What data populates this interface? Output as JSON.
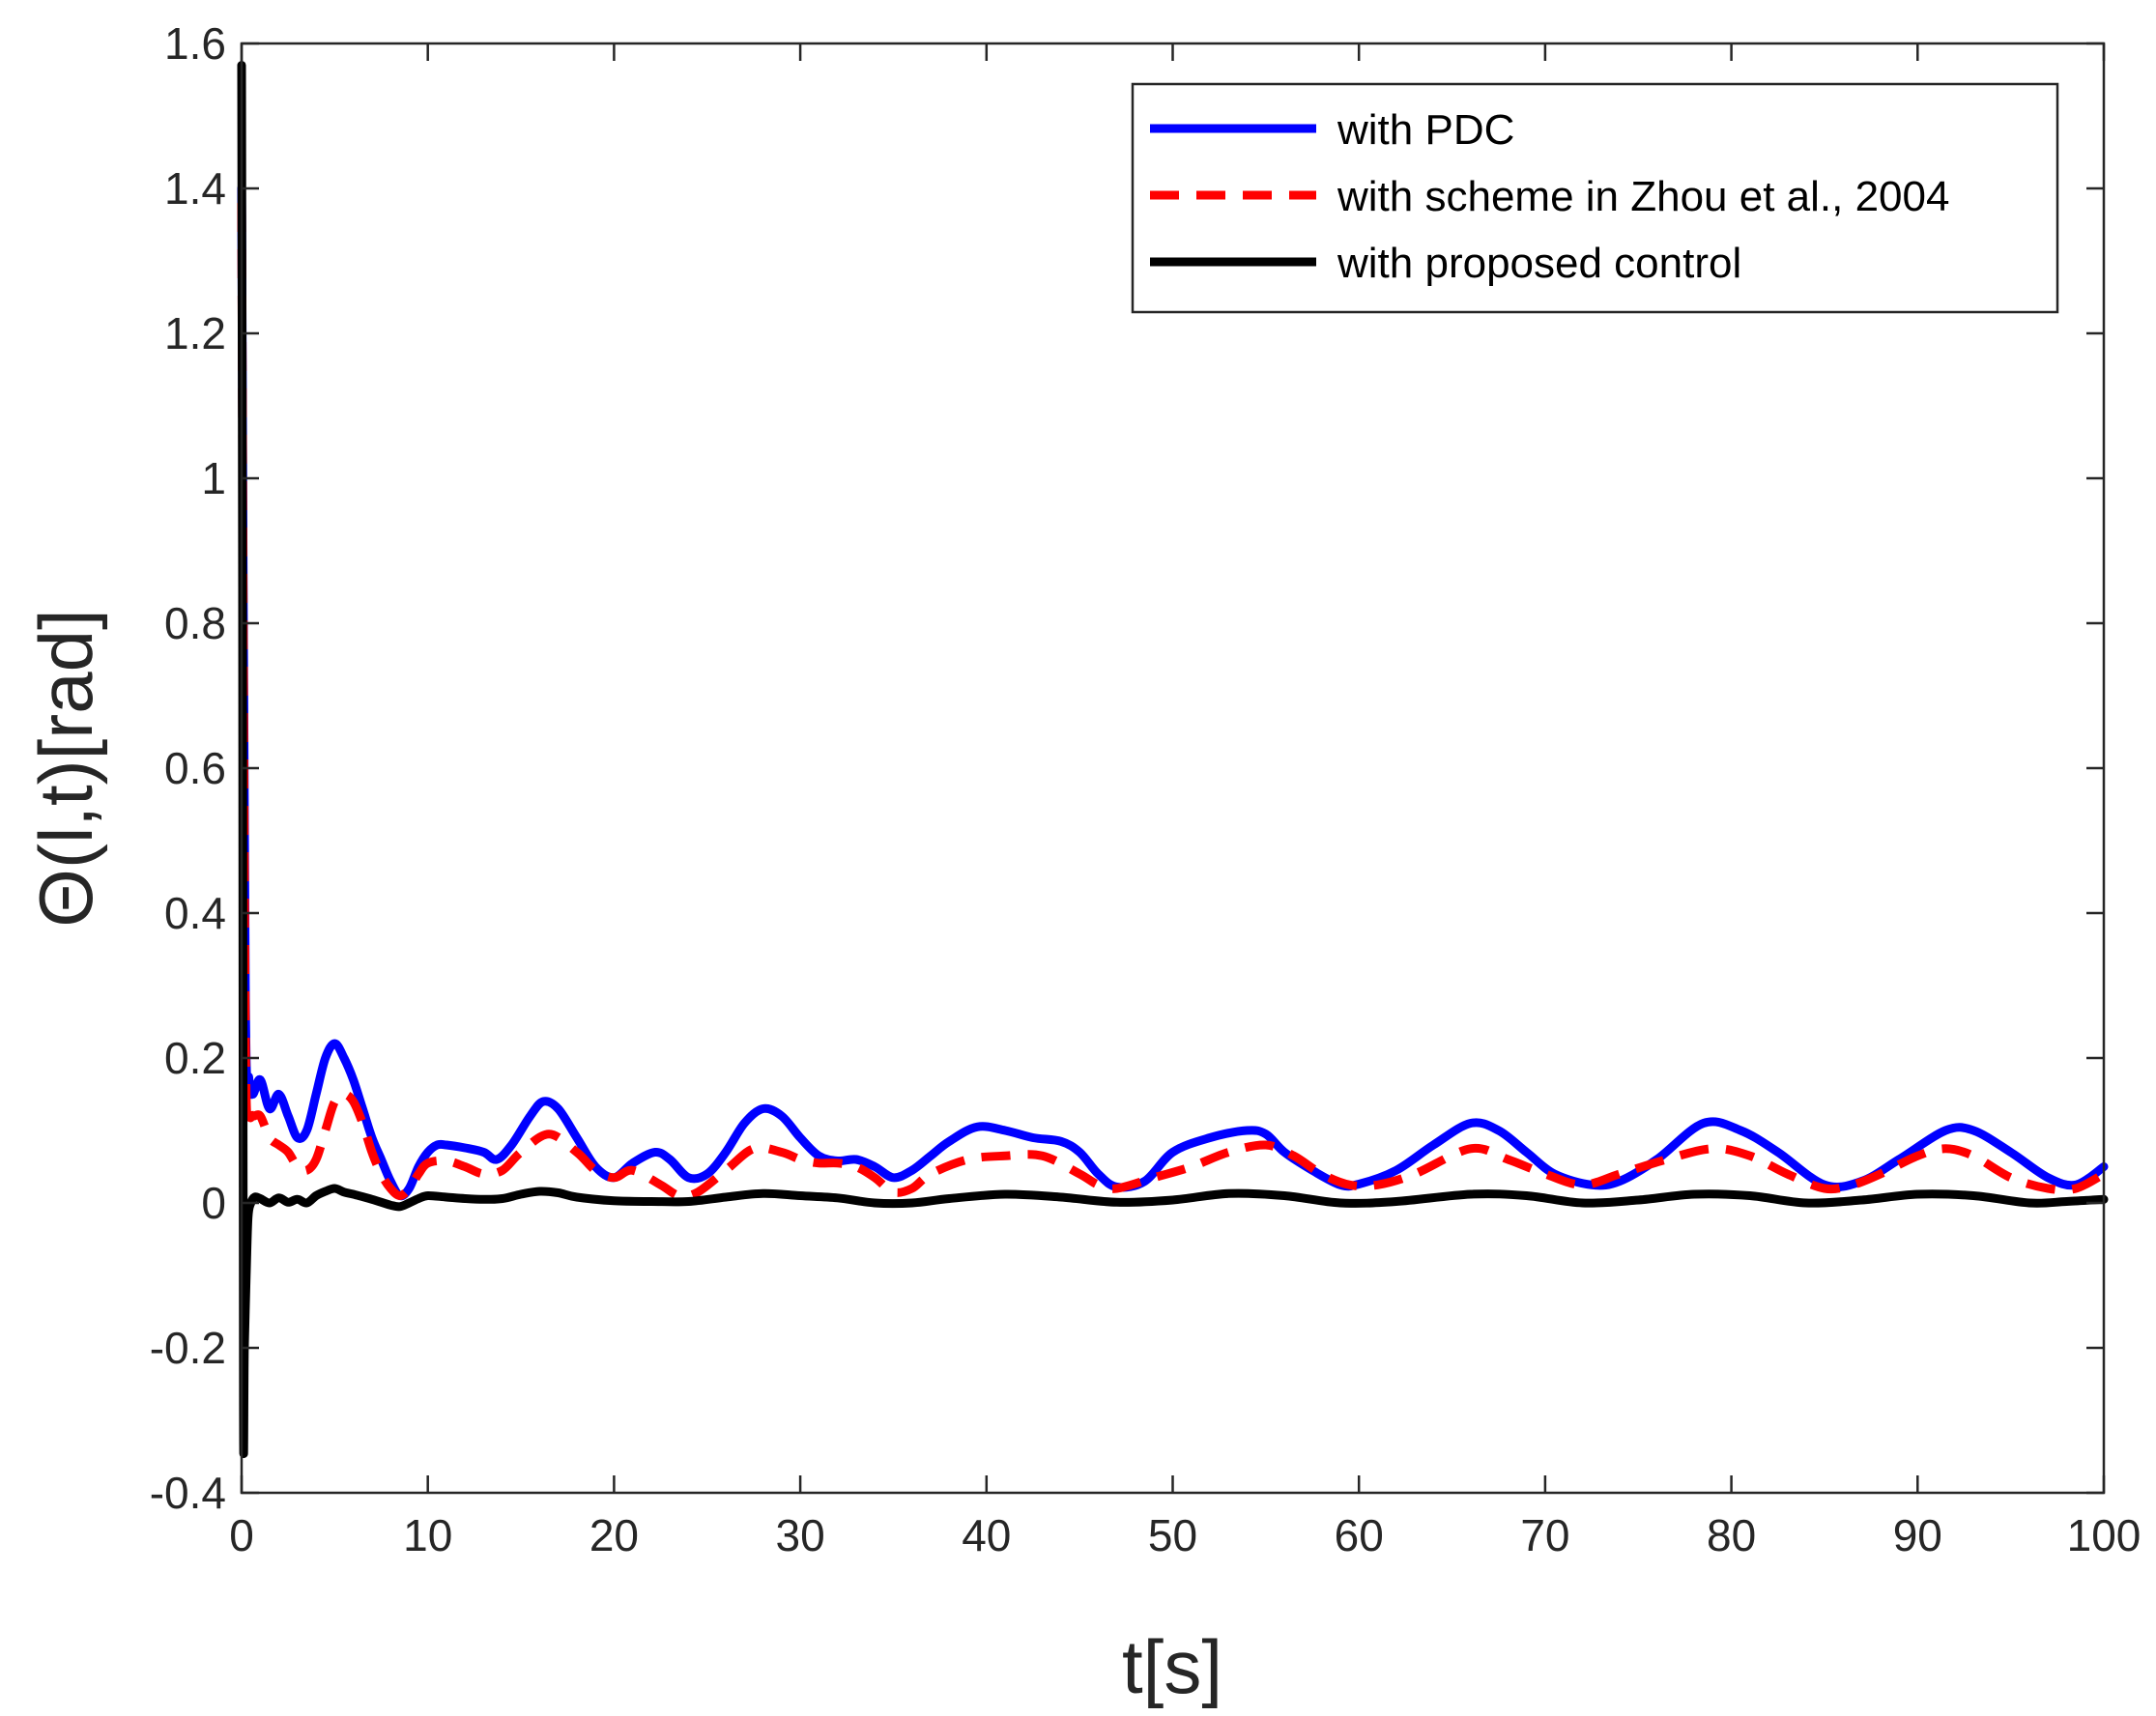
{
  "chart_data": {
    "type": "line",
    "title": "",
    "xlabel": "t[s]",
    "ylabel": "Θ(l,t)[rad]",
    "xlim": [
      0,
      100
    ],
    "ylim": [
      -0.4,
      1.6
    ],
    "xticks": [
      0,
      10,
      20,
      30,
      40,
      50,
      60,
      70,
      80,
      90,
      100
    ],
    "xtick_labels": [
      "0",
      "10",
      "20",
      "30",
      "40",
      "50",
      "60",
      "70",
      "80",
      "90",
      "100"
    ],
    "yticks": [
      -0.4,
      -0.2,
      0,
      0.2,
      0.4,
      0.6,
      0.8,
      1,
      1.2,
      1.4,
      1.6
    ],
    "ytick_labels": [
      "-0.4",
      "-0.2",
      "0",
      "0.2",
      "0.4",
      "0.6",
      "0.8",
      "1",
      "1.2",
      "1.4",
      "1.6"
    ],
    "grid": false,
    "legend_position": "top-right",
    "series": [
      {
        "name": "with PDC",
        "color": "#0000ff",
        "style": "solid",
        "x": [
          0,
          0.2,
          0.4,
          0.6,
          1.0,
          1.5,
          2.0,
          2.5,
          3.0,
          3.5,
          4.0,
          4.5,
          5.0,
          5.5,
          6.0,
          6.5,
          7.0,
          7.5,
          8.0,
          8.5,
          9.0,
          9.5,
          10.0,
          10.5,
          11.0,
          12.0,
          13.0,
          13.7,
          14.5,
          15.5,
          16.2,
          17.0,
          18.0,
          19.0,
          20.0,
          21.0,
          22.2,
          23.0,
          24.0,
          25.0,
          26.0,
          27.0,
          28.0,
          29.0,
          30.0,
          31.0,
          32.0,
          33.0,
          34.0,
          35.0,
          36.0,
          37.0,
          38.0,
          39.5,
          41.0,
          42.5,
          44.0,
          45.0,
          46.0,
          47.0,
          48.5,
          50.0,
          52.0,
          54.0,
          55.0,
          56.0,
          57.5,
          59.0,
          60.0,
          62.0,
          64.0,
          66.0,
          67.5,
          69.0,
          70.5,
          72.5,
          74.0,
          76.0,
          78.5,
          80.5,
          82.5,
          85.0,
          87.0,
          89.0,
          91.5,
          93.0,
          95.0,
          97.0,
          98.5,
          100.0
        ],
        "values": [
          1.4,
          0.3,
          0.17,
          0.15,
          0.17,
          0.13,
          0.15,
          0.12,
          0.09,
          0.1,
          0.15,
          0.2,
          0.22,
          0.2,
          0.17,
          0.13,
          0.09,
          0.06,
          0.03,
          0.01,
          0.02,
          0.05,
          0.07,
          0.08,
          0.08,
          0.076,
          0.07,
          0.06,
          0.08,
          0.12,
          0.14,
          0.13,
          0.09,
          0.05,
          0.035,
          0.055,
          0.07,
          0.06,
          0.035,
          0.04,
          0.07,
          0.11,
          0.13,
          0.12,
          0.09,
          0.065,
          0.058,
          0.06,
          0.05,
          0.035,
          0.045,
          0.065,
          0.085,
          0.105,
          0.1,
          0.09,
          0.085,
          0.07,
          0.04,
          0.022,
          0.03,
          0.07,
          0.09,
          0.1,
          0.095,
          0.07,
          0.045,
          0.025,
          0.026,
          0.045,
          0.08,
          0.11,
          0.1,
          0.07,
          0.04,
          0.025,
          0.03,
          0.06,
          0.11,
          0.1,
          0.07,
          0.025,
          0.03,
          0.06,
          0.1,
          0.1,
          0.07,
          0.035,
          0.025,
          0.05
        ]
      },
      {
        "name": "with scheme in Zhou et al., 2004",
        "color": "#ff0000",
        "style": "dashed",
        "x": [
          0,
          0.2,
          0.4,
          0.6,
          1.0,
          1.5,
          2.0,
          2.5,
          3.0,
          3.5,
          4.0,
          4.5,
          5.0,
          5.5,
          6.0,
          6.5,
          7.0,
          7.5,
          8.0,
          8.5,
          9.0,
          9.5,
          10.0,
          11.0,
          12.0,
          13.0,
          14.0,
          15.0,
          16.5,
          18.0,
          19.0,
          20.0,
          21.0,
          22.5,
          23.5,
          24.5,
          26.0,
          27.5,
          29.0,
          30.0,
          31.0,
          32.0,
          33.0,
          34.0,
          35.0,
          36.0,
          37.0,
          39.0,
          41.0,
          43.0,
          45.0,
          46.0,
          47.0,
          49.0,
          51.0,
          53.0,
          55.0,
          56.5,
          58.0,
          59.5,
          61.0,
          63.0,
          66.0,
          68.0,
          70.0,
          72.0,
          74.0,
          76.5,
          79.0,
          81.0,
          83.0,
          85.0,
          86.5,
          88.0,
          90.0,
          91.5,
          93.0,
          95.0,
          97.0,
          98.5,
          100.0
        ],
        "values": [
          1.38,
          0.25,
          0.13,
          0.12,
          0.12,
          0.09,
          0.08,
          0.07,
          0.05,
          0.045,
          0.06,
          0.1,
          0.14,
          0.15,
          0.14,
          0.11,
          0.07,
          0.04,
          0.02,
          0.01,
          0.02,
          0.04,
          0.055,
          0.058,
          0.05,
          0.04,
          0.045,
          0.07,
          0.095,
          0.07,
          0.045,
          0.035,
          0.045,
          0.025,
          0.01,
          0.015,
          0.045,
          0.075,
          0.07,
          0.06,
          0.055,
          0.055,
          0.05,
          0.035,
          0.015,
          0.02,
          0.04,
          0.06,
          0.065,
          0.065,
          0.04,
          0.025,
          0.02,
          0.035,
          0.05,
          0.07,
          0.08,
          0.065,
          0.04,
          0.025,
          0.025,
          0.04,
          0.075,
          0.06,
          0.04,
          0.025,
          0.04,
          0.06,
          0.075,
          0.065,
          0.04,
          0.02,
          0.025,
          0.04,
          0.065,
          0.075,
          0.065,
          0.035,
          0.02,
          0.02,
          0.04
        ]
      },
      {
        "name": "with proposed control",
        "color": "#000000",
        "style": "solid",
        "x": [
          0,
          0.05,
          0.1,
          0.15,
          0.25,
          0.35,
          0.5,
          0.7,
          1.0,
          1.5,
          2.0,
          2.5,
          3.0,
          3.5,
          4.0,
          4.5,
          5.0,
          5.5,
          6.0,
          7.0,
          8.0,
          8.5,
          9.0,
          9.5,
          10.0,
          11.0,
          12.0,
          13.0,
          14.0,
          15.0,
          16.0,
          17.0,
          18.0,
          20.0,
          22.0,
          24.0,
          26.0,
          28.0,
          30.0,
          32.0,
          34.0,
          36.0,
          38.0,
          41.0,
          44.0,
          47.0,
          50.0,
          53.0,
          56.0,
          59.0,
          62.0,
          66.0,
          69.0,
          72.0,
          75.0,
          78.0,
          81.0,
          84.0,
          87.0,
          90.0,
          93.0,
          96.0,
          98.0,
          100.0
        ],
        "values": [
          1.57,
          0.85,
          -0.28,
          -0.2,
          -0.1,
          -0.02,
          0.0,
          0.008,
          0.006,
          0.0,
          0.007,
          0.001,
          0.005,
          0.0,
          0.01,
          0.016,
          0.02,
          0.015,
          0.012,
          0.005,
          -0.003,
          -0.005,
          0.0,
          0.006,
          0.01,
          0.008,
          0.006,
          0.005,
          0.006,
          0.012,
          0.016,
          0.014,
          0.008,
          0.003,
          0.002,
          0.002,
          0.008,
          0.013,
          0.01,
          0.007,
          0.0,
          0.0,
          0.006,
          0.012,
          0.008,
          0.001,
          0.004,
          0.013,
          0.01,
          0.0,
          0.002,
          0.012,
          0.01,
          0.0,
          0.004,
          0.012,
          0.01,
          0.0,
          0.004,
          0.012,
          0.01,
          0.0,
          0.002,
          0.005
        ]
      }
    ]
  }
}
